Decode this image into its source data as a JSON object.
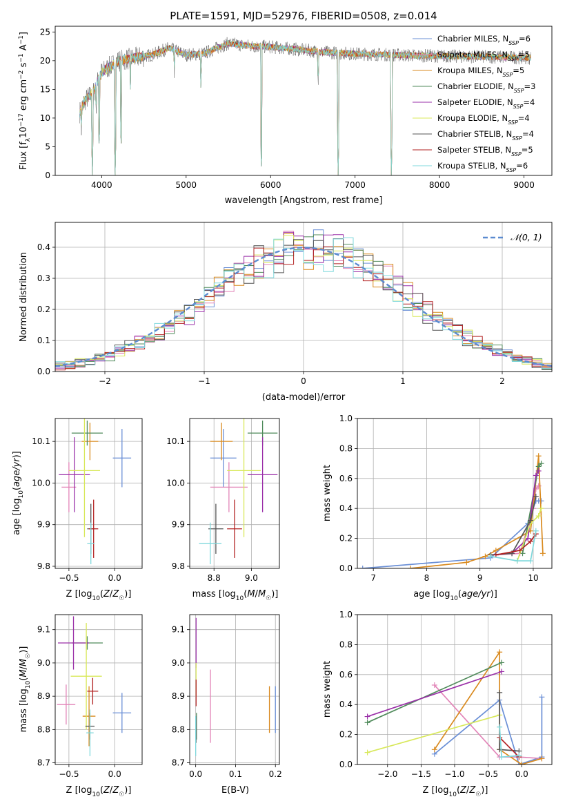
{
  "figure": {
    "title": "PLATE=1591, MJD=52976, FIBERID=0508, z=0.014"
  },
  "models": [
    {
      "label": "Chabrier MILES, N",
      "sub": "SSP",
      "tail": "=6",
      "color": "#6a8fd6"
    },
    {
      "label": "Salpeter MILES, N",
      "sub": "SSP",
      "tail": "=5",
      "color": "#e285b8"
    },
    {
      "label": "Kroupa MILES, N",
      "sub": "SSP",
      "tail": "=5",
      "color": "#d98a1f"
    },
    {
      "label": "Chabrier ELODIE, N",
      "sub": "SSP",
      "tail": "=3",
      "color": "#4f8a5a"
    },
    {
      "label": "Salpeter ELODIE, N",
      "sub": "SSP",
      "tail": "=4",
      "color": "#9a2fa8"
    },
    {
      "label": "Kroupa ELODIE, N",
      "sub": "SSP",
      "tail": "=4",
      "color": "#d8e85a"
    },
    {
      "label": "Chabrier STELIB, N",
      "sub": "SSP",
      "tail": "=4",
      "color": "#555555"
    },
    {
      "label": "Salpeter STELIB, N",
      "sub": "SSP",
      "tail": "=5",
      "color": "#b22222"
    },
    {
      "label": "Kroupa STELIB, N",
      "sub": "SSP",
      "tail": "=6",
      "color": "#7fd8dc"
    }
  ],
  "chart_data": [
    {
      "id": "spectrum",
      "type": "line",
      "xlabel": "wavelength [Angstrom, rest frame]",
      "ylabel_parts": [
        "Flux [f",
        "λ",
        "10",
        "−17",
        " erg cm",
        "−2",
        " s",
        "−1",
        " A",
        "−1",
        "]"
      ],
      "xlim": [
        3450,
        9330
      ],
      "ylim": [
        0,
        26
      ],
      "xticks": [
        4000,
        5000,
        6000,
        7000,
        8000,
        9000
      ],
      "yticks": [
        0,
        5,
        10,
        15,
        20,
        25
      ],
      "data_range": [
        3740,
        9080
      ],
      "continuum": [
        [
          3740,
          11
        ],
        [
          3800,
          13
        ],
        [
          3900,
          14.5
        ],
        [
          4000,
          18
        ],
        [
          4100,
          19
        ],
        [
          4200,
          20
        ],
        [
          4400,
          20.5
        ],
        [
          4600,
          21
        ],
        [
          4800,
          22.2
        ],
        [
          5000,
          21
        ],
        [
          5200,
          21.2
        ],
        [
          5500,
          23
        ],
        [
          5800,
          22.5
        ],
        [
          6000,
          22.4
        ],
        [
          6300,
          22
        ],
        [
          6600,
          21.5
        ],
        [
          7000,
          21.2
        ],
        [
          7500,
          21
        ],
        [
          8000,
          20.8
        ],
        [
          8500,
          20.7
        ],
        [
          9080,
          20.5
        ]
      ],
      "absorption": [
        [
          3760,
          7
        ],
        [
          3890,
          0
        ],
        [
          3935,
          10
        ],
        [
          3970,
          4
        ],
        [
          4160,
          0
        ],
        [
          4230,
          4
        ],
        [
          4340,
          15
        ],
        [
          4860,
          17
        ],
        [
          5175,
          14.5
        ],
        [
          5890,
          0
        ],
        [
          6563,
          15
        ],
        [
          6800,
          0
        ],
        [
          7430,
          0
        ]
      ]
    },
    {
      "id": "residuals",
      "type": "histogram",
      "xlabel": "(data-model)/error",
      "ylabel": "Normed distribution",
      "xlim": [
        -2.5,
        2.5
      ],
      "ylim": [
        0,
        0.48
      ],
      "xticks": [
        -2,
        -1,
        0,
        1,
        2
      ],
      "yticks": [
        0.0,
        0.1,
        0.2,
        0.3,
        0.4
      ],
      "bin_width": 0.1,
      "legend_label": "𝒩(0, 1)",
      "legend_color": "#5b8bd0"
    },
    {
      "id": "age-vs-Z",
      "type": "scatter",
      "xlabel_parts": [
        "Z [log",
        "10",
        "(",
        "Z",
        "/",
        "Z",
        "☉",
        ")]"
      ],
      "ylabel_parts": [
        "age  [log",
        "10",
        "(",
        "age/yr",
        ")]"
      ],
      "xlim": [
        -0.65,
        0.3
      ],
      "ylim": [
        9.795,
        10.155
      ],
      "xticks": [
        -0.5,
        0.0
      ],
      "yticks": [
        9.8,
        9.9,
        10.0,
        10.1
      ],
      "points": [
        {
          "m": 0,
          "x": 0.08,
          "y": 10.06,
          "xe": 0.1,
          "ye": 0.07
        },
        {
          "m": 1,
          "x": -0.5,
          "y": 9.99,
          "xe": 0.08,
          "ye": 0.06
        },
        {
          "m": 2,
          "x": -0.27,
          "y": 10.1,
          "xe": 0.09,
          "ye": 0.045
        },
        {
          "m": 3,
          "x": -0.3,
          "y": 10.12,
          "xe": 0.17,
          "ye": 0.03
        },
        {
          "m": 4,
          "x": -0.44,
          "y": 10.02,
          "xe": 0.17,
          "ye": 0.09
        },
        {
          "m": 5,
          "x": -0.33,
          "y": 10.03,
          "xe": 0.17,
          "ye": 0.16
        },
        {
          "m": 6,
          "x": -0.26,
          "y": 9.89,
          "xe": 0.04,
          "ye": 0.06
        },
        {
          "m": 7,
          "x": -0.23,
          "y": 9.89,
          "xe": 0.05,
          "ye": 0.07
        },
        {
          "m": 8,
          "x": -0.26,
          "y": 9.855,
          "xe": 0.04,
          "ye": 0.05
        }
      ]
    },
    {
      "id": "age-vs-mass",
      "type": "scatter",
      "xlabel_parts": [
        "mass [log",
        "10",
        "(",
        "M",
        "/",
        "M",
        "☉",
        ")]"
      ],
      "ylabel_parts": [
        "",
        "",
        "",
        "",
        ""
      ],
      "xlim": [
        8.67,
        9.15
      ],
      "ylim": [
        9.795,
        10.155
      ],
      "xticks": [
        8.8,
        9.0
      ],
      "yticks": [
        9.8,
        9.9,
        10.0,
        10.1
      ],
      "points": [
        {
          "m": 0,
          "x": 8.85,
          "y": 10.06,
          "xe": 0.07,
          "ye": 0.07
        },
        {
          "m": 1,
          "x": 8.88,
          "y": 9.99,
          "xe": 0.1,
          "ye": 0.06
        },
        {
          "m": 2,
          "x": 8.84,
          "y": 10.1,
          "xe": 0.06,
          "ye": 0.045
        },
        {
          "m": 3,
          "x": 9.06,
          "y": 10.12,
          "xe": 0.08,
          "ye": 0.03
        },
        {
          "m": 4,
          "x": 9.06,
          "y": 10.02,
          "xe": 0.08,
          "ye": 0.09
        },
        {
          "m": 5,
          "x": 8.96,
          "y": 10.03,
          "xe": 0.09,
          "ye": 0.16
        },
        {
          "m": 6,
          "x": 8.81,
          "y": 9.89,
          "xe": 0.04,
          "ye": 0.06
        },
        {
          "m": 7,
          "x": 8.91,
          "y": 9.89,
          "xe": 0.04,
          "ye": 0.07
        },
        {
          "m": 8,
          "x": 8.78,
          "y": 9.855,
          "xe": 0.06,
          "ye": 0.05
        }
      ]
    },
    {
      "id": "weight-vs-age",
      "type": "line",
      "xlabel_parts": [
        "age  [log",
        "10",
        "(",
        "age/yr",
        ")]"
      ],
      "ylabel": "mass weight",
      "xlim": [
        6.7,
        10.35
      ],
      "ylim": [
        0,
        1
      ],
      "xticks": [
        7,
        8,
        9,
        10
      ],
      "yticks": [
        0.0,
        0.2,
        0.4,
        0.6,
        0.8,
        1.0
      ],
      "lines": [
        {
          "m": 0,
          "x": [
            6.8,
            9.2,
            9.9,
            10.05,
            10.1,
            10.15
          ],
          "y": [
            0.0,
            0.07,
            0.3,
            0.45,
            0.45,
            0.45
          ]
        },
        {
          "m": 1,
          "x": [
            9.3,
            9.75,
            10.0,
            10.05,
            10.1
          ],
          "y": [
            0.09,
            0.1,
            0.4,
            0.53,
            0.55
          ]
        },
        {
          "m": 2,
          "x": [
            7.7,
            8.75,
            9.1,
            9.3,
            9.95,
            10.1,
            10.18
          ],
          "y": [
            0.0,
            0.04,
            0.08,
            0.12,
            0.25,
            0.75,
            0.1
          ]
        },
        {
          "m": 3,
          "x": [
            9.8,
            10.1,
            10.15
          ],
          "y": [
            0.1,
            0.68,
            0.7
          ]
        },
        {
          "m": 4,
          "x": [
            9.6,
            9.9,
            10.05,
            10.1
          ],
          "y": [
            0.1,
            0.2,
            0.62,
            0.65
          ]
        },
        {
          "m": 5,
          "x": [
            9.7,
            9.95,
            10.1,
            10.15
          ],
          "y": [
            0.05,
            0.3,
            0.35,
            0.4
          ]
        },
        {
          "m": 6,
          "x": [
            9.2,
            9.6,
            9.95,
            10.05
          ],
          "y": [
            0.09,
            0.1,
            0.32,
            0.48
          ]
        },
        {
          "m": 7,
          "x": [
            9.3,
            9.75,
            9.95,
            10.05
          ],
          "y": [
            0.09,
            0.12,
            0.18,
            0.23
          ]
        },
        {
          "m": 8,
          "x": [
            9.2,
            9.7,
            9.95,
            10.05
          ],
          "y": [
            0.08,
            0.05,
            0.05,
            0.25
          ]
        }
      ]
    },
    {
      "id": "mass-vs-Z",
      "type": "scatter",
      "xlabel_parts": [
        "Z [log",
        "10",
        "(",
        "Z",
        "/",
        "Z",
        "☉",
        ")]"
      ],
      "ylabel_parts": [
        "mass [log",
        "10",
        "(",
        "M",
        "/",
        "M",
        "☉",
        ")]"
      ],
      "xlim": [
        -0.65,
        0.3
      ],
      "ylim": [
        8.695,
        9.145
      ],
      "xticks": [
        -0.5,
        0.0
      ],
      "yticks": [
        8.7,
        8.8,
        8.9,
        9.0,
        9.1
      ],
      "points": [
        {
          "m": 0,
          "x": 0.08,
          "y": 8.85,
          "xe": 0.1,
          "ye": 0.06
        },
        {
          "m": 1,
          "x": -0.53,
          "y": 8.875,
          "xe": 0.1,
          "ye": 0.06
        },
        {
          "m": 2,
          "x": -0.28,
          "y": 8.84,
          "xe": 0.07,
          "ye": 0.09
        },
        {
          "m": 3,
          "x": -0.3,
          "y": 9.06,
          "xe": 0.17,
          "ye": 0.02
        },
        {
          "m": 4,
          "x": -0.45,
          "y": 9.06,
          "xe": 0.17,
          "ye": 0.08
        },
        {
          "m": 5,
          "x": -0.31,
          "y": 8.96,
          "xe": 0.17,
          "ye": 0.16
        },
        {
          "m": 6,
          "x": -0.27,
          "y": 8.81,
          "xe": 0.05,
          "ye": 0.04
        },
        {
          "m": 7,
          "x": -0.24,
          "y": 8.915,
          "xe": 0.06,
          "ye": 0.04
        },
        {
          "m": 8,
          "x": -0.27,
          "y": 8.79,
          "xe": 0.04,
          "ye": 0.07
        }
      ]
    },
    {
      "id": "mass-vs-EBV",
      "type": "scatter",
      "xlabel": "E(B-V)",
      "xlim": [
        -0.015,
        0.21
      ],
      "ylim": [
        8.695,
        9.145
      ],
      "xticks": [
        0.0,
        0.1,
        0.2
      ],
      "yticks": [
        8.7,
        8.8,
        8.9,
        9.0,
        9.1
      ],
      "points": [
        {
          "m": 0,
          "x": 0.2,
          "y": 8.86,
          "xe": 0,
          "ye": 0.07
        },
        {
          "m": 1,
          "x": 0.037,
          "y": 8.87,
          "xe": 0,
          "ye": 0.11
        },
        {
          "m": 2,
          "x": 0.185,
          "y": 8.86,
          "xe": 0,
          "ye": 0.07
        },
        {
          "m": 3,
          "x": 0.002,
          "y": 8.81,
          "xe": 0,
          "ye": 0.04
        },
        {
          "m": 4,
          "x": 0.001,
          "y": 9.06,
          "xe": 0,
          "ye": 0.075
        },
        {
          "m": 5,
          "x": 0.001,
          "y": 8.95,
          "xe": 0,
          "ye": 0.05
        },
        {
          "m": 6,
          "x": 0.001,
          "y": 8.8,
          "xe": 0,
          "ye": 0.04
        },
        {
          "m": 7,
          "x": 0.001,
          "y": 8.91,
          "xe": 0,
          "ye": 0.04
        },
        {
          "m": 8,
          "x": 0.0,
          "y": 8.78,
          "xe": 0,
          "ye": 0.06
        }
      ]
    },
    {
      "id": "weight-vs-Z",
      "type": "line",
      "xlabel_parts": [
        "Z [log",
        "10",
        "(",
        "Z",
        "/",
        "Z",
        "☉",
        ")]"
      ],
      "ylabel": "mass weight",
      "xlim": [
        -2.45,
        0.45
      ],
      "ylim": [
        0,
        1
      ],
      "xticks": [
        -2.0,
        -1.5,
        -1.0,
        -0.5,
        0.0
      ],
      "yticks": [
        0.0,
        0.2,
        0.4,
        0.6,
        0.8,
        1.0
      ],
      "lines": [
        {
          "m": 0,
          "x": [
            -1.3,
            -0.33,
            -0.04,
            0.3,
            0.3
          ],
          "y": [
            0.07,
            0.43,
            0.0,
            0.05,
            0.45
          ]
        },
        {
          "m": 1,
          "x": [
            -1.3,
            -0.33,
            -0.04,
            0.3
          ],
          "y": [
            0.53,
            0.05,
            0.05,
            0.04
          ]
        },
        {
          "m": 2,
          "x": [
            -1.3,
            -0.33,
            -0.33,
            0.0,
            0.3
          ],
          "y": [
            0.1,
            0.75,
            0.1,
            0.0,
            0.04
          ]
        },
        {
          "m": 3,
          "x": [
            -2.3,
            -0.3
          ],
          "y": [
            0.28,
            0.68
          ]
        },
        {
          "m": 4,
          "x": [
            -2.3,
            -0.3
          ],
          "y": [
            0.32,
            0.62
          ]
        },
        {
          "m": 5,
          "x": [
            -2.3,
            -0.33
          ],
          "y": [
            0.08,
            0.33
          ]
        },
        {
          "m": 6,
          "x": [
            -0.33,
            -0.33,
            -0.04
          ],
          "y": [
            0.48,
            0.1,
            0.09
          ]
        },
        {
          "m": 7,
          "x": [
            -0.33,
            -0.04
          ],
          "y": [
            0.18,
            0.05
          ]
        },
        {
          "m": 8,
          "x": [
            -0.33,
            -0.3,
            -0.04
          ],
          "y": [
            0.25,
            0.05,
            0.06
          ]
        }
      ]
    }
  ]
}
